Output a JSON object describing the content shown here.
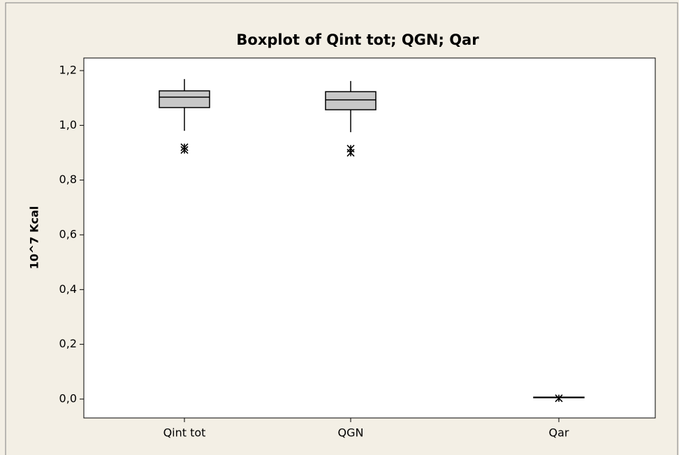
{
  "chart_data": {
    "type": "box",
    "title": "Boxplot of Qint tot; QGN; Qar",
    "ylabel": "10^7 Kcal",
    "categories": [
      "Qint tot",
      "QGN",
      "Qar"
    ],
    "boxes": [
      {
        "min": 0.98,
        "q1": 1.065,
        "median": 1.103,
        "q3": 1.126,
        "max": 1.169,
        "outliers": [
          0.92,
          0.91
        ]
      },
      {
        "min": 0.975,
        "q1": 1.057,
        "median": 1.093,
        "q3": 1.123,
        "max": 1.162,
        "outliers": [
          0.915,
          0.9
        ]
      },
      {
        "min": 0.004,
        "q1": 0.005,
        "median": 0.006,
        "q3": 0.007,
        "max": 0.008,
        "outliers": [
          0.003
        ]
      }
    ],
    "color": "#c8c8c8",
    "ylim": [
      -0.069,
      1.246
    ],
    "yticks": [
      {
        "value": 0,
        "label": "0,0"
      },
      {
        "value": 0.2,
        "label": "0,2"
      },
      {
        "value": 0.4,
        "label": "0,4"
      },
      {
        "value": 0.6,
        "label": "0,6"
      },
      {
        "value": 0.8,
        "label": "0,8"
      },
      {
        "value": 1.0,
        "label": "1,0"
      },
      {
        "value": 1.2,
        "label": "1,2"
      }
    ]
  }
}
